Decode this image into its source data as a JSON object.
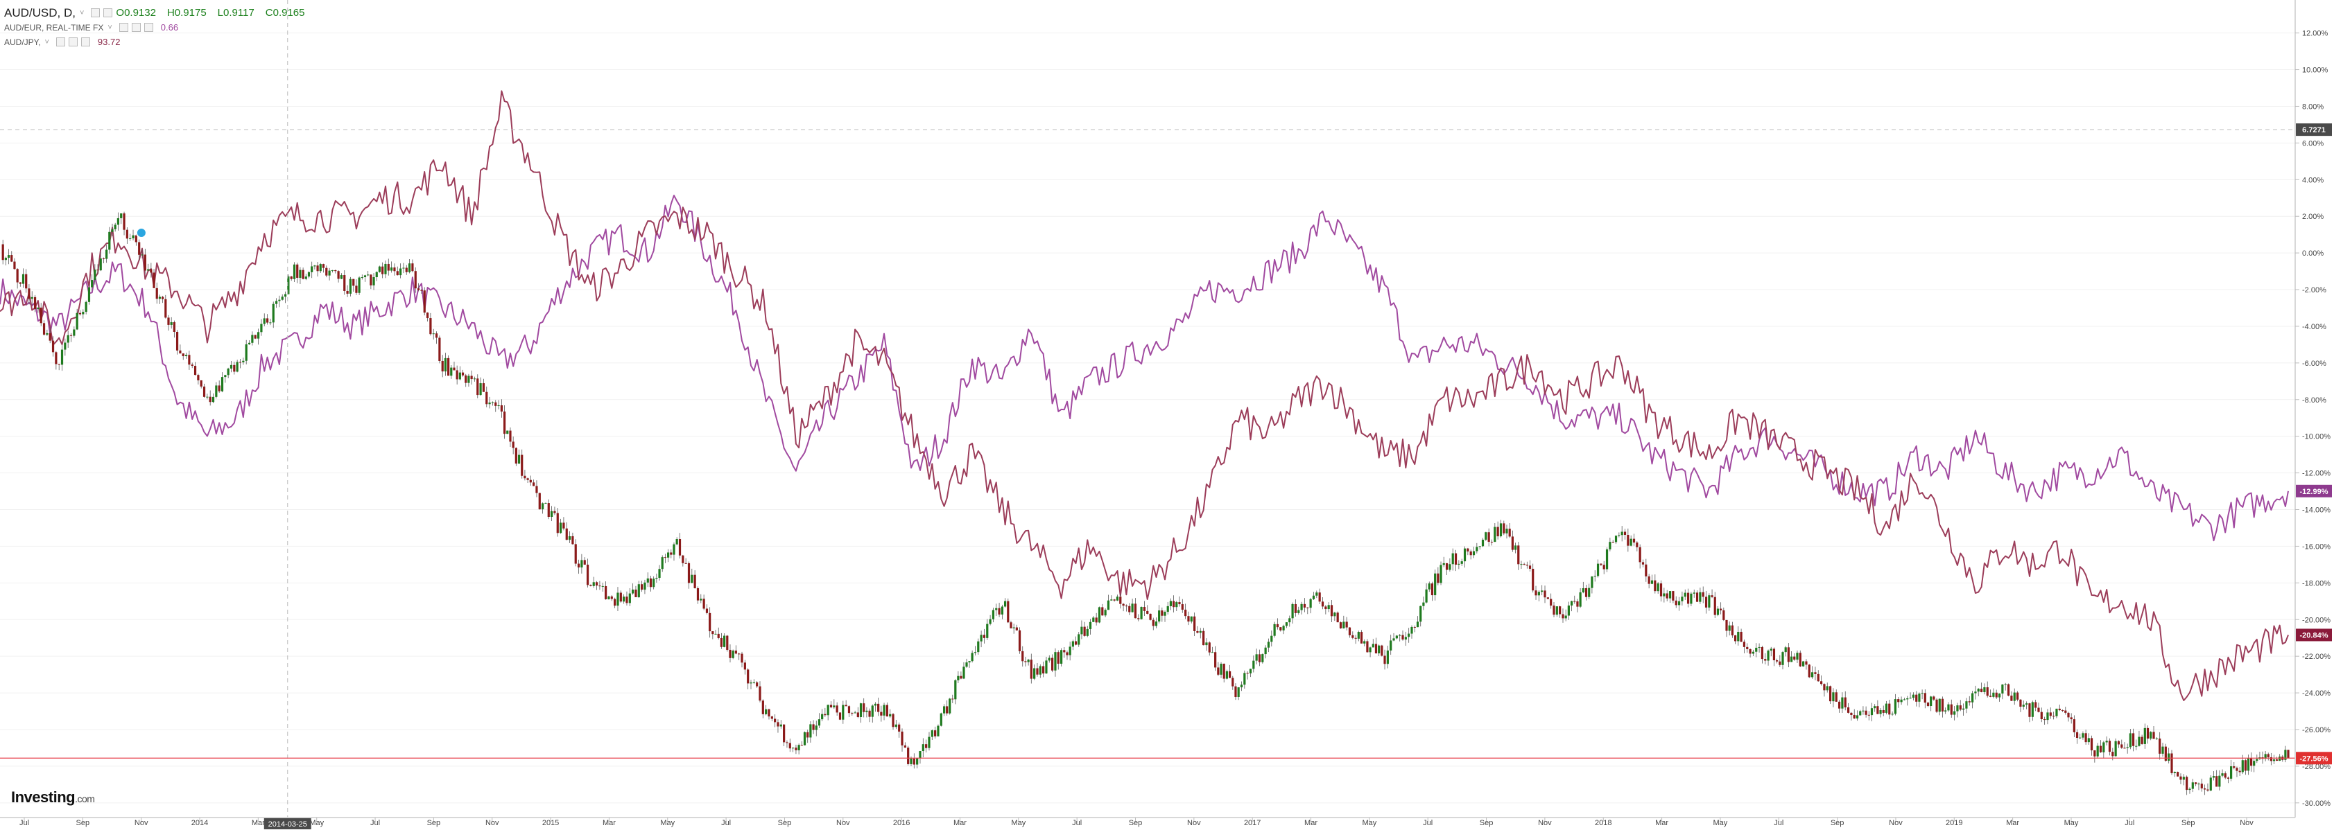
{
  "legend": {
    "main": {
      "symbol": "AUD/USD, D,",
      "dropdown": "˅",
      "open": "O0.9132",
      "high": "H0.9175",
      "low": "L0.9117",
      "close": "C0.9165"
    },
    "eur": {
      "label": "AUD/EUR, REAL-TIME FX",
      "dropdown": "˅",
      "value": "0.66"
    },
    "jpy": {
      "label": "AUD/JPY,",
      "dropdown": "˅",
      "value": "93.72"
    }
  },
  "logo": {
    "name": "Investing",
    "suffix": ".com"
  },
  "crosshair_date": "2014-03-25",
  "crosshair_value": "6.7271",
  "colors": {
    "aud_usd_up": "#1f7a1f",
    "aud_usd_down": "#8b1a1a",
    "aud_eur_line": "#a14aa0",
    "aud_jpy_line": "#9c3d5a",
    "last_price_line": "#e8434d"
  },
  "chart_data": {
    "type": "line",
    "title": "",
    "ylabel": "",
    "xlabel": "",
    "y_unit": "%",
    "ylim": [
      -30.8,
      13.8
    ],
    "y_ticks": [
      "12.00%",
      "10.00%",
      "8.00%",
      "6.00%",
      "4.00%",
      "2.00%",
      "0.00%",
      "-2.00%",
      "-4.00%",
      "-6.00%",
      "-8.00%",
      "-10.00%",
      "-12.00%",
      "-14.00%",
      "-16.00%",
      "-18.00%",
      "-20.00%",
      "-22.00%",
      "-24.00%",
      "-26.00%",
      "-28.00%",
      "-30.00%"
    ],
    "x_ticks": [
      "Jul",
      "Sep",
      "Nov",
      "2014",
      "Mar",
      "May",
      "Jul",
      "Sep",
      "Nov",
      "2015",
      "Mar",
      "May",
      "Jul",
      "Sep",
      "Nov",
      "2016",
      "Mar",
      "May",
      "Jul",
      "Sep",
      "Nov",
      "2017",
      "Mar",
      "May",
      "Jul",
      "Sep",
      "Nov",
      "2018",
      "Mar",
      "May",
      "Jul",
      "Sep",
      "Nov",
      "2019",
      "Mar",
      "May",
      "Jul",
      "Sep",
      "Nov"
    ],
    "x_start": "2013-06-01",
    "x_end": "2019-11-20",
    "series": [
      {
        "name": "AUD/USD",
        "style": "candles",
        "last_label": "-27.56%",
        "points": [
          [
            "2013-06-01",
            0
          ],
          [
            "2013-07-01",
            -2
          ],
          [
            "2013-08-01",
            -6
          ],
          [
            "2013-09-01",
            -2
          ],
          [
            "2013-10-01",
            2
          ],
          [
            "2013-11-01",
            -1
          ],
          [
            "2013-12-01",
            -5
          ],
          [
            "2014-01-01",
            -8
          ],
          [
            "2014-02-01",
            -6
          ],
          [
            "2014-03-01",
            -4
          ],
          [
            "2014-04-01",
            -1
          ],
          [
            "2014-05-01",
            -1
          ],
          [
            "2014-06-01",
            -2
          ],
          [
            "2014-07-01",
            -1
          ],
          [
            "2014-08-01",
            -1
          ],
          [
            "2014-09-01",
            -6
          ],
          [
            "2014-10-01",
            -7
          ],
          [
            "2014-11-01",
            -9
          ],
          [
            "2014-12-01",
            -13
          ],
          [
            "2015-01-01",
            -15
          ],
          [
            "2015-02-01",
            -18
          ],
          [
            "2015-03-01",
            -19
          ],
          [
            "2015-04-01",
            -18
          ],
          [
            "2015-05-01",
            -16
          ],
          [
            "2015-06-01",
            -20
          ],
          [
            "2015-07-01",
            -22
          ],
          [
            "2015-08-01",
            -25
          ],
          [
            "2015-09-01",
            -27
          ],
          [
            "2015-10-01",
            -25
          ],
          [
            "2015-11-01",
            -25
          ],
          [
            "2015-12-01",
            -25
          ],
          [
            "2016-01-01",
            -28
          ],
          [
            "2016-02-01",
            -25
          ],
          [
            "2016-03-01",
            -22
          ],
          [
            "2016-04-01",
            -19
          ],
          [
            "2016-05-01",
            -23
          ],
          [
            "2016-06-01",
            -22
          ],
          [
            "2016-07-01",
            -20
          ],
          [
            "2016-08-01",
            -19
          ],
          [
            "2016-09-01",
            -20
          ],
          [
            "2016-10-01",
            -19
          ],
          [
            "2016-11-01",
            -22
          ],
          [
            "2016-12-01",
            -24
          ],
          [
            "2017-01-01",
            -21
          ],
          [
            "2017-02-01",
            -19
          ],
          [
            "2017-03-01",
            -19
          ],
          [
            "2017-04-01",
            -21
          ],
          [
            "2017-05-01",
            -22
          ],
          [
            "2017-06-01",
            -20
          ],
          [
            "2017-07-01",
            -17
          ],
          [
            "2017-08-01",
            -16
          ],
          [
            "2017-09-01",
            -15
          ],
          [
            "2017-10-01",
            -18
          ],
          [
            "2017-11-01",
            -20
          ],
          [
            "2017-12-01",
            -18
          ],
          [
            "2018-01-01",
            -15
          ],
          [
            "2018-02-01",
            -18
          ],
          [
            "2018-03-01",
            -19
          ],
          [
            "2018-04-01",
            -19
          ],
          [
            "2018-05-01",
            -21
          ],
          [
            "2018-06-01",
            -22
          ],
          [
            "2018-07-01",
            -22
          ],
          [
            "2018-08-01",
            -24
          ],
          [
            "2018-09-01",
            -25
          ],
          [
            "2018-10-01",
            -25
          ],
          [
            "2018-11-01",
            -24
          ],
          [
            "2018-12-01",
            -25
          ],
          [
            "2019-01-01",
            -24
          ],
          [
            "2019-02-01",
            -24
          ],
          [
            "2019-03-01",
            -25
          ],
          [
            "2019-04-01",
            -25
          ],
          [
            "2019-05-01",
            -27
          ],
          [
            "2019-06-01",
            -27
          ],
          [
            "2019-07-01",
            -26
          ],
          [
            "2019-08-01",
            -29
          ],
          [
            "2019-09-01",
            -29
          ],
          [
            "2019-10-01",
            -28
          ],
          [
            "2019-11-20",
            -27.56
          ]
        ]
      },
      {
        "name": "AUD/EUR",
        "style": "line",
        "last_label": "-12.99%",
        "points": [
          [
            "2013-06-01",
            -2
          ],
          [
            "2013-07-01",
            -3
          ],
          [
            "2013-08-01",
            -4
          ],
          [
            "2013-09-01",
            -2
          ],
          [
            "2013-10-01",
            -1
          ],
          [
            "2013-11-01",
            -3
          ],
          [
            "2013-12-01",
            -8
          ],
          [
            "2014-01-01",
            -10
          ],
          [
            "2014-02-01",
            -9
          ],
          [
            "2014-03-01",
            -6
          ],
          [
            "2014-04-01",
            -5
          ],
          [
            "2014-05-01",
            -3
          ],
          [
            "2014-06-01",
            -4
          ],
          [
            "2014-07-01",
            -3
          ],
          [
            "2014-08-01",
            -2
          ],
          [
            "2014-09-01",
            -3
          ],
          [
            "2014-10-01",
            -4
          ],
          [
            "2014-11-01",
            -6
          ],
          [
            "2014-12-01",
            -5
          ],
          [
            "2015-01-01",
            -2
          ],
          [
            "2015-02-01",
            0
          ],
          [
            "2015-03-01",
            1
          ],
          [
            "2015-04-01",
            0
          ],
          [
            "2015-05-01",
            3
          ],
          [
            "2015-06-01",
            0
          ],
          [
            "2015-07-01",
            -3
          ],
          [
            "2015-08-01",
            -8
          ],
          [
            "2015-09-01",
            -12
          ],
          [
            "2015-10-01",
            -9
          ],
          [
            "2015-11-01",
            -7
          ],
          [
            "2015-12-01",
            -5
          ],
          [
            "2016-01-01",
            -12
          ],
          [
            "2016-02-01",
            -10
          ],
          [
            "2016-03-01",
            -6
          ],
          [
            "2016-04-01",
            -7
          ],
          [
            "2016-05-01",
            -4
          ],
          [
            "2016-06-01",
            -9
          ],
          [
            "2016-07-01",
            -7
          ],
          [
            "2016-08-01",
            -6
          ],
          [
            "2016-09-01",
            -5
          ],
          [
            "2016-10-01",
            -4
          ],
          [
            "2016-11-01",
            -2
          ],
          [
            "2016-12-01",
            -2
          ],
          [
            "2017-01-01",
            -1
          ],
          [
            "2017-02-01",
            0
          ],
          [
            "2017-03-01",
            2
          ],
          [
            "2017-04-01",
            0
          ],
          [
            "2017-05-01",
            -2
          ],
          [
            "2017-06-01",
            -6
          ],
          [
            "2017-07-01",
            -5
          ],
          [
            "2017-08-01",
            -5
          ],
          [
            "2017-09-01",
            -6
          ],
          [
            "2017-10-01",
            -7
          ],
          [
            "2017-11-01",
            -9
          ],
          [
            "2017-12-01",
            -9
          ],
          [
            "2018-01-01",
            -9
          ],
          [
            "2018-02-01",
            -11
          ],
          [
            "2018-03-01",
            -12
          ],
          [
            "2018-04-01",
            -13
          ],
          [
            "2018-05-01",
            -11
          ],
          [
            "2018-06-01",
            -10
          ],
          [
            "2018-07-01",
            -11
          ],
          [
            "2018-08-01",
            -12
          ],
          [
            "2018-09-01",
            -13
          ],
          [
            "2018-10-01",
            -13
          ],
          [
            "2018-11-01",
            -11
          ],
          [
            "2018-12-01",
            -12
          ],
          [
            "2019-01-01",
            -10
          ],
          [
            "2019-02-01",
            -12
          ],
          [
            "2019-03-01",
            -13
          ],
          [
            "2019-04-01",
            -12
          ],
          [
            "2019-05-01",
            -12
          ],
          [
            "2019-06-01",
            -11
          ],
          [
            "2019-07-01",
            -13
          ],
          [
            "2019-08-01",
            -14
          ],
          [
            "2019-09-01",
            -15
          ],
          [
            "2019-10-01",
            -14
          ],
          [
            "2019-11-20",
            -12.99
          ]
        ]
      },
      {
        "name": "AUD/JPY",
        "style": "line",
        "last_label": "-20.84%",
        "points": [
          [
            "2013-06-01",
            -3
          ],
          [
            "2013-07-01",
            -2
          ],
          [
            "2013-08-01",
            -5
          ],
          [
            "2013-09-01",
            -1
          ],
          [
            "2013-10-01",
            1
          ],
          [
            "2013-11-01",
            -1
          ],
          [
            "2013-12-01",
            -2
          ],
          [
            "2014-01-01",
            -4
          ],
          [
            "2014-02-01",
            -2
          ],
          [
            "2014-03-01",
            1
          ],
          [
            "2014-04-01",
            2
          ],
          [
            "2014-05-01",
            2
          ],
          [
            "2014-06-01",
            2
          ],
          [
            "2014-07-01",
            3
          ],
          [
            "2014-08-01",
            3
          ],
          [
            "2014-09-01",
            5
          ],
          [
            "2014-10-01",
            2
          ],
          [
            "2014-11-01",
            8
          ],
          [
            "2014-12-01",
            5
          ],
          [
            "2015-01-01",
            1
          ],
          [
            "2015-02-01",
            -2
          ],
          [
            "2015-03-01",
            -1
          ],
          [
            "2015-04-01",
            1
          ],
          [
            "2015-05-01",
            2
          ],
          [
            "2015-06-01",
            1
          ],
          [
            "2015-07-01",
            -1
          ],
          [
            "2015-08-01",
            -3
          ],
          [
            "2015-09-01",
            -10
          ],
          [
            "2015-10-01",
            -8
          ],
          [
            "2015-11-01",
            -5
          ],
          [
            "2015-12-01",
            -6
          ],
          [
            "2016-01-01",
            -10
          ],
          [
            "2016-02-01",
            -13
          ],
          [
            "2016-03-01",
            -11
          ],
          [
            "2016-04-01",
            -14
          ],
          [
            "2016-05-01",
            -16
          ],
          [
            "2016-06-01",
            -18
          ],
          [
            "2016-07-01",
            -16
          ],
          [
            "2016-08-01",
            -18
          ],
          [
            "2016-09-01",
            -18
          ],
          [
            "2016-10-01",
            -16
          ],
          [
            "2016-11-01",
            -13
          ],
          [
            "2016-12-01",
            -9
          ],
          [
            "2017-01-01",
            -10
          ],
          [
            "2017-02-01",
            -8
          ],
          [
            "2017-03-01",
            -7
          ],
          [
            "2017-04-01",
            -9
          ],
          [
            "2017-05-01",
            -11
          ],
          [
            "2017-06-01",
            -11
          ],
          [
            "2017-07-01",
            -8
          ],
          [
            "2017-08-01",
            -8
          ],
          [
            "2017-09-01",
            -7
          ],
          [
            "2017-10-01",
            -6
          ],
          [
            "2017-11-01",
            -8
          ],
          [
            "2017-12-01",
            -7
          ],
          [
            "2018-01-01",
            -6
          ],
          [
            "2018-02-01",
            -9
          ],
          [
            "2018-03-01",
            -10
          ],
          [
            "2018-04-01",
            -11
          ],
          [
            "2018-05-01",
            -9
          ],
          [
            "2018-06-01",
            -10
          ],
          [
            "2018-07-01",
            -11
          ],
          [
            "2018-08-01",
            -12
          ],
          [
            "2018-09-01",
            -13
          ],
          [
            "2018-10-01",
            -15
          ],
          [
            "2018-11-01",
            -12
          ],
          [
            "2018-12-01",
            -15
          ],
          [
            "2019-01-01",
            -18
          ],
          [
            "2019-02-01",
            -16
          ],
          [
            "2019-03-01",
            -17
          ],
          [
            "2019-04-01",
            -16
          ],
          [
            "2019-05-01",
            -19
          ],
          [
            "2019-06-01",
            -19
          ],
          [
            "2019-07-01",
            -20
          ],
          [
            "2019-08-01",
            -24
          ],
          [
            "2019-09-01",
            -23
          ],
          [
            "2019-10-01",
            -22
          ],
          [
            "2019-11-20",
            -20.84
          ]
        ]
      }
    ]
  }
}
